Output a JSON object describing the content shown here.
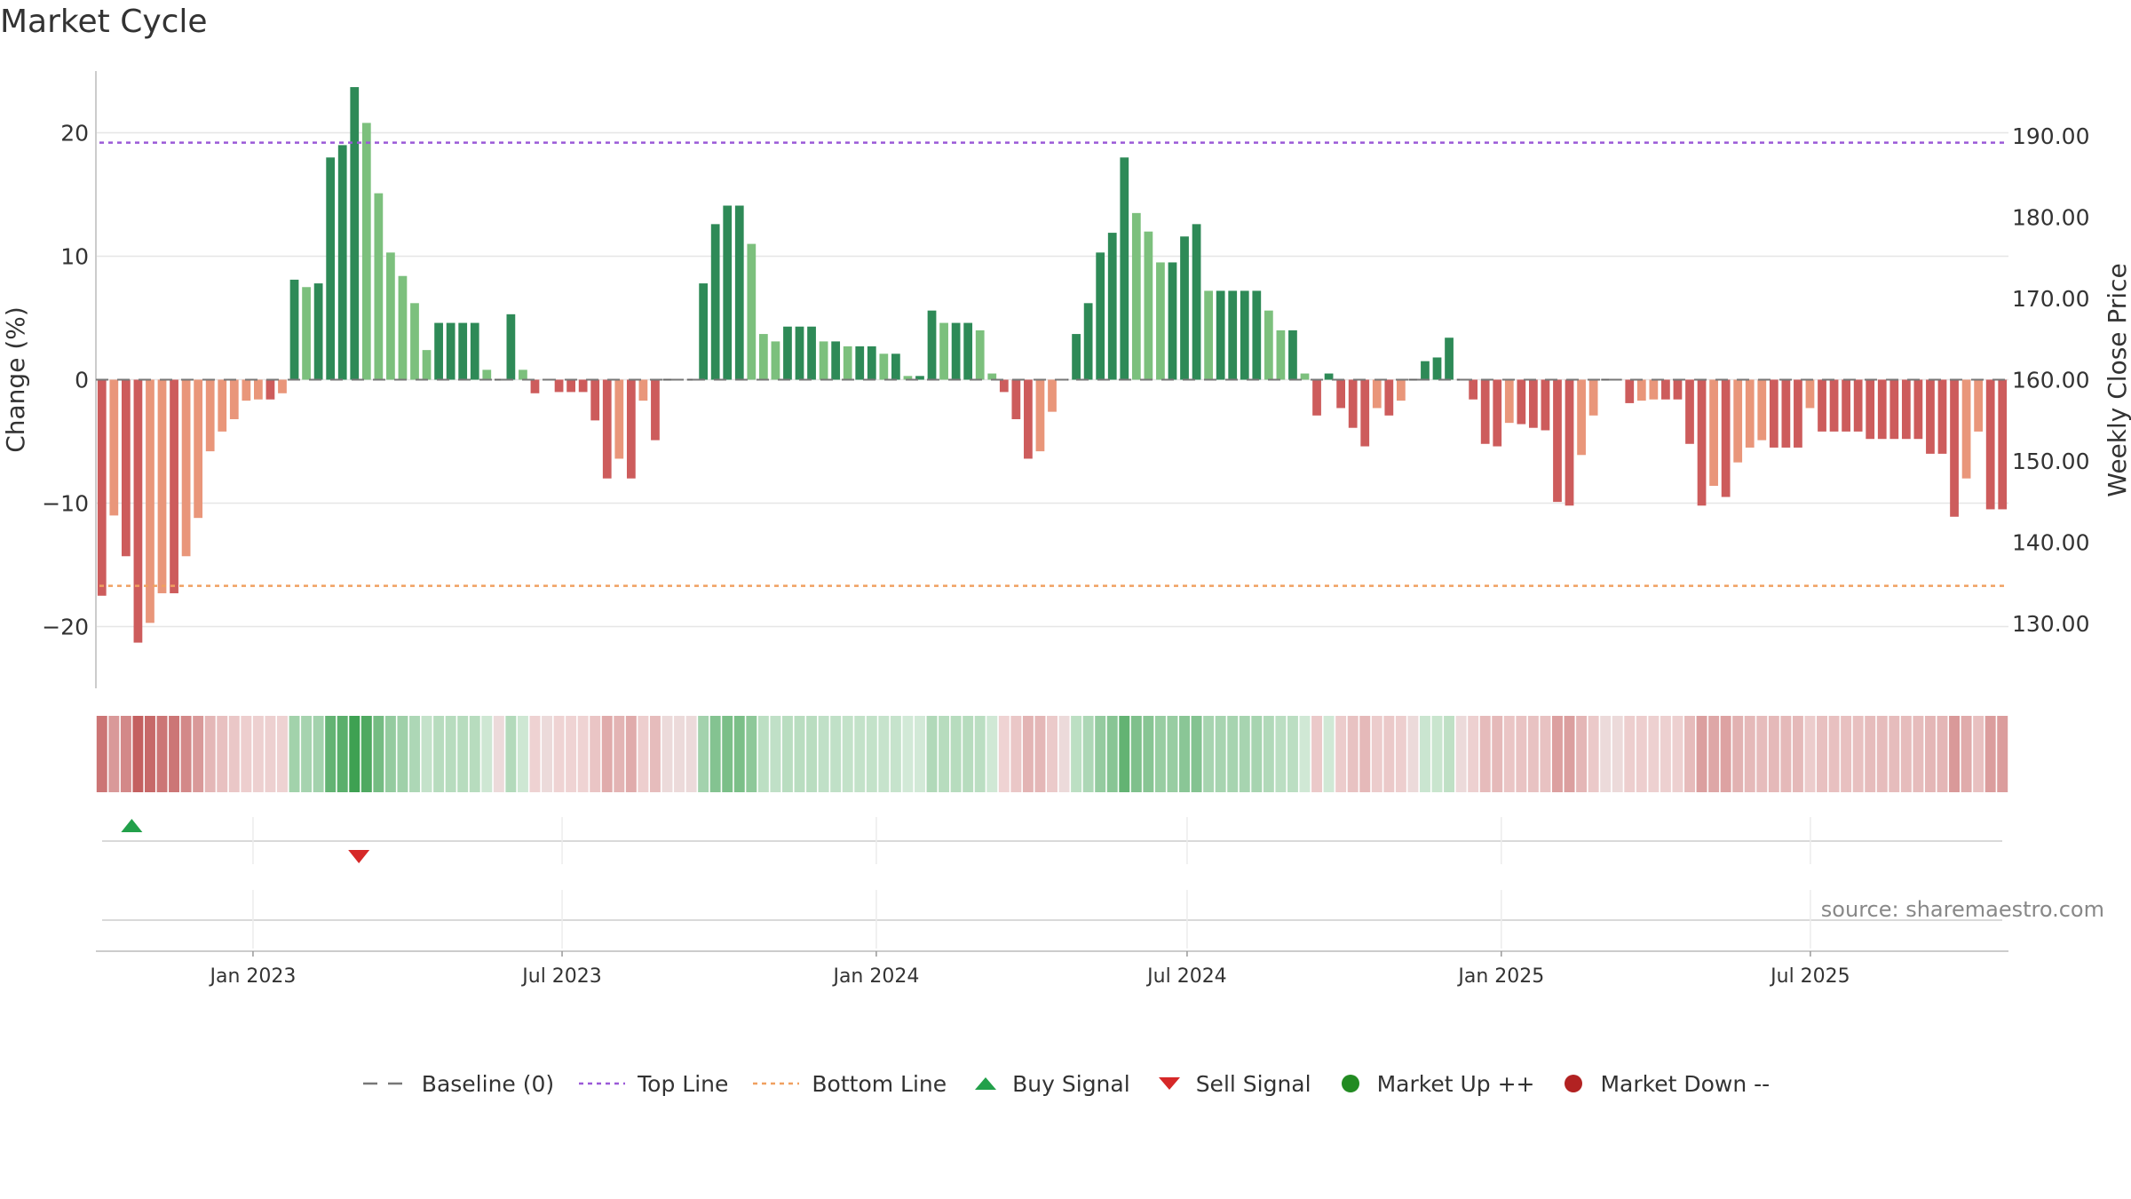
{
  "title": "Market Cycle",
  "source": "source: sharemaestro.com",
  "chart_data": {
    "type": "bar",
    "ylabel_left": "Change (%)",
    "ylabel_right": "Weekly Close Price",
    "ylim_left": [
      -25,
      25
    ],
    "yticks_left": [
      20,
      10,
      0,
      -10,
      -20
    ],
    "ytick_labels_left": [
      "20",
      "10",
      "0",
      "−10",
      "−20"
    ],
    "ylim_right": [
      122,
      198
    ],
    "yticks_right": [
      "190.00",
      "180.00",
      "170.00",
      "160.00",
      "150.00",
      "140.00",
      "130.00"
    ],
    "top_line": 19.2,
    "bottom_line": -16.7,
    "x_start": "2022-10-01",
    "x_end": "2025-10-25",
    "x_ticks": [
      {
        "date": "2023-01-01",
        "label": "Jan 2023"
      },
      {
        "date": "2023-07-01",
        "label": "Jul 2023"
      },
      {
        "date": "2024-01-01",
        "label": "Jan 2024"
      },
      {
        "date": "2024-07-01",
        "label": "Jul 2024"
      },
      {
        "date": "2025-01-01",
        "label": "Jan 2025"
      },
      {
        "date": "2025-07-01",
        "label": "Jul 2025"
      }
    ],
    "values": [
      -17.5,
      -11,
      -14.3,
      -21.3,
      -19.7,
      -17.3,
      -17.3,
      -14.3,
      -11.2,
      -5.8,
      -4.2,
      -3.2,
      -1.7,
      -1.6,
      -1.6,
      -1.1,
      8.1,
      7.5,
      7.8,
      18,
      19,
      23.7,
      20.8,
      15.1,
      10.3,
      8.4,
      6.2,
      2.4,
      4.6,
      4.6,
      4.6,
      4.6,
      0.8,
      0,
      5.3,
      0.8,
      -1.1,
      0,
      -1,
      -1,
      -1,
      -3.3,
      -8,
      -6.4,
      -8,
      -1.7,
      -4.9,
      0,
      0,
      0,
      7.8,
      12.6,
      14.1,
      14.1,
      11,
      3.7,
      3.1,
      4.3,
      4.3,
      4.3,
      3.1,
      3.1,
      2.7,
      2.7,
      2.7,
      2.1,
      2.1,
      0.3,
      0.3,
      5.6,
      4.6,
      4.6,
      4.6,
      4,
      0.5,
      -1,
      -3.2,
      -6.4,
      -5.8,
      -2.6,
      0,
      3.7,
      6.2,
      10.3,
      11.9,
      18,
      13.5,
      12,
      9.5,
      9.5,
      11.6,
      12.6,
      7.2,
      7.2,
      7.2,
      7.2,
      7.2,
      5.6,
      4,
      4,
      0.5,
      -2.9,
      0.5,
      -2.3,
      -3.9,
      -5.4,
      -2.3,
      -2.9,
      -1.7,
      0,
      1.5,
      1.8,
      3.4,
      0,
      -1.6,
      -5.2,
      -5.4,
      -3.5,
      -3.6,
      -3.9,
      -4.1,
      -9.9,
      -10.2,
      -6.1,
      -2.9,
      0,
      0,
      -1.9,
      -1.7,
      -1.6,
      -1.6,
      -1.6,
      -5.2,
      -10.2,
      -8.6,
      -9.5,
      -6.7,
      -5.5,
      -4.9,
      -5.5,
      -5.5,
      -5.5,
      -2.3,
      -4.2,
      -4.2,
      -4.2,
      -4.2,
      -4.8,
      -4.8,
      -4.8,
      -4.8,
      -4.8,
      -6,
      -6,
      -11.1,
      -8,
      -4.2,
      -10.5,
      -10.5
    ],
    "colors": {
      "strong_up": "#2e8a57",
      "mild_up": "#7cc07d",
      "strong_down": "#cd5c5c",
      "mild_down": "#e9967a",
      "top_line": "#9b59d8",
      "bottom_line": "#f0a060",
      "buy_signal": "#22a04a",
      "sell_signal": "#d62828",
      "market_up": "#228b22",
      "market_down": "#b22222"
    },
    "buy_signals": [
      "2022-10-22"
    ],
    "sell_signals": [
      "2023-03-04"
    ],
    "legend_placement": "bottom-center"
  },
  "legend": [
    {
      "key": "baseline",
      "label": "Baseline (0)",
      "symbol": "dash",
      "color": "#777777"
    },
    {
      "key": "top",
      "label": "Top Line",
      "symbol": "dot-line",
      "color": "#9b59d8"
    },
    {
      "key": "bottom",
      "label": "Bottom Line",
      "symbol": "dot-line",
      "color": "#f0a060"
    },
    {
      "key": "buy",
      "label": "Buy Signal",
      "symbol": "triangle-up",
      "color": "#22a04a"
    },
    {
      "key": "sell",
      "label": "Sell Signal",
      "symbol": "triangle-down",
      "color": "#d62828"
    },
    {
      "key": "mup",
      "label": "Market Up ++",
      "symbol": "circle",
      "color": "#228b22"
    },
    {
      "key": "mdown",
      "label": "Market Down --",
      "symbol": "circle",
      "color": "#b22222"
    }
  ]
}
